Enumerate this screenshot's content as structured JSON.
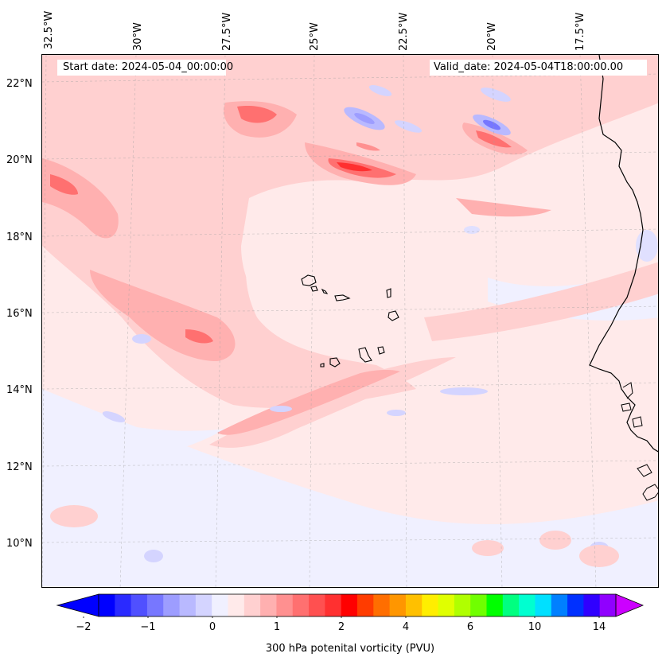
{
  "map": {
    "title_left": "Start date: 2024-05-04_00:00:00",
    "title_right": "Valid_date: 2024-05-04T18:00:00.00",
    "lon_labels": [
      "32.5°W",
      "30°W",
      "27.5°W",
      "25°W",
      "22.5°W",
      "20°W",
      "17.5°W"
    ],
    "lat_labels": [
      "22°N",
      "20°N",
      "18°N",
      "16°N",
      "14°N",
      "12°N",
      "10°N"
    ],
    "variable": "300 hPa potential vorticity",
    "coastline_color": "#000000",
    "gridlines": "dashed gray"
  },
  "colorbar": {
    "label": "300 hPa potenital vorticity (PVU)",
    "tick_labels": [
      "−2",
      "−1",
      "0",
      "1",
      "2",
      "4",
      "6",
      "10",
      "14"
    ],
    "colors": [
      "#0000ff",
      "#2a2aff",
      "#5050ff",
      "#7777ff",
      "#9d9dff",
      "#b9b9ff",
      "#d4d4ff",
      "#f0f0ff",
      "#ffeaea",
      "#ffd0d0",
      "#ffb0b0",
      "#ff9090",
      "#ff7070",
      "#ff5050",
      "#ff3030",
      "#ff0000",
      "#ff3c00",
      "#ff6e00",
      "#ff9600",
      "#ffc000",
      "#ffee00",
      "#e0ff00",
      "#b0ff00",
      "#70ff00",
      "#00ff00",
      "#00ff80",
      "#00ffd0",
      "#00e0ff",
      "#0080ff",
      "#0030ff",
      "#3000ff",
      "#9000ff"
    ],
    "extend_low_color": "#0000ff",
    "extend_high_color": "#cc00ff"
  }
}
